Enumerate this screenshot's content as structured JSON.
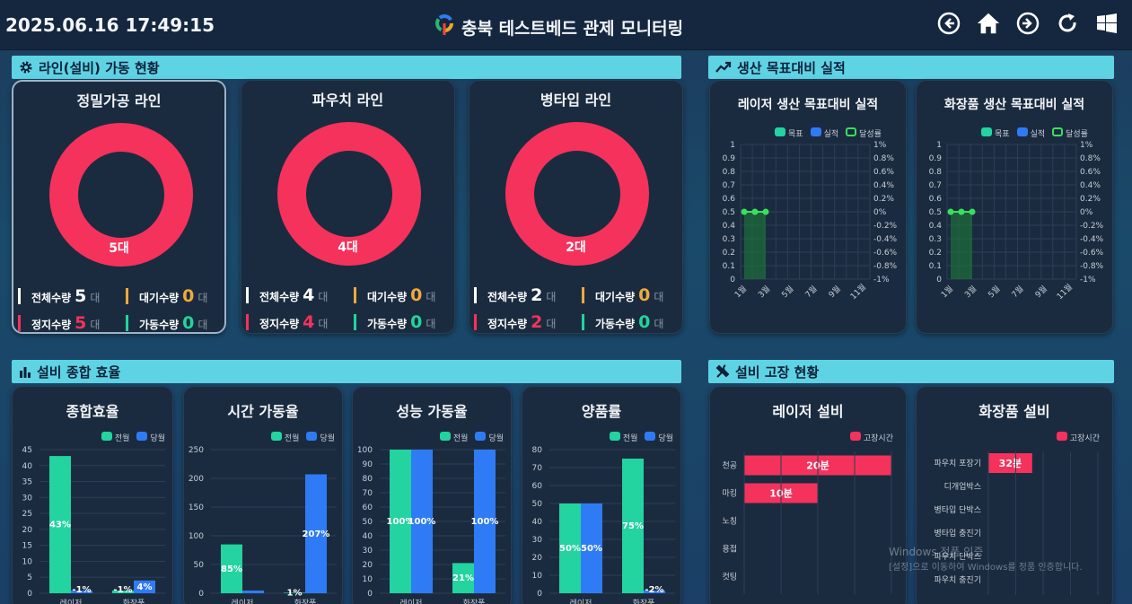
{
  "header": {
    "datetime": "2025.06.16 17:49:15",
    "title": "충북 테스트베드 관제 모니터링",
    "icons": [
      "back-circle-icon",
      "home-icon",
      "forward-circle-icon",
      "refresh-icon",
      "windows-icon"
    ]
  },
  "sections": {
    "line_status": "라인(설비) 가동 현황",
    "production": "생산 목표대비 실적",
    "efficiency": "설비 종합 효율",
    "failure": "설비 고장 현황"
  },
  "lines": [
    {
      "name": "정밀가공 라인",
      "center": "5대",
      "total_label": "전체수량",
      "total": "5",
      "wait_label": "대기수량",
      "wait": "0",
      "stop_label": "정지수량",
      "stop": "5",
      "run_label": "가동수량",
      "run": "0",
      "unit": "대"
    },
    {
      "name": "파우치 라인",
      "center": "4대",
      "total_label": "전체수량",
      "total": "4",
      "wait_label": "대기수량",
      "wait": "0",
      "stop_label": "정지수량",
      "stop": "4",
      "run_label": "가동수량",
      "run": "0",
      "unit": "대"
    },
    {
      "name": "병타입 라인",
      "center": "2대",
      "total_label": "전체수량",
      "total": "2",
      "wait_label": "대기수량",
      "wait": "0",
      "stop_label": "정지수량",
      "stop": "2",
      "run_label": "가동수량",
      "run": "0",
      "unit": "대"
    }
  ],
  "colors": {
    "stop": "#f5325c",
    "run": "#22d49c",
    "wait": "#f0a93a",
    "current": "#23d3a0",
    "prev": "#2f7bf5",
    "failure": "#f5325c"
  },
  "prod_charts": [
    {
      "title": "레이저 생산  목표대비 실적",
      "legend": [
        "목표",
        "실적",
        "달성률"
      ],
      "y_left": [
        "1",
        "0.9",
        "0.8",
        "0.7",
        "0.6",
        "0.5",
        "0.4",
        "0.3",
        "0.2",
        "0.1",
        "0"
      ],
      "y_right": [
        "1%",
        "0.8%",
        "0.6%",
        "0.4%",
        "0.2%",
        "0%",
        "-0.2%",
        "-0.4%",
        "-0.6%",
        "-0.8%",
        "-1%"
      ],
      "x": [
        "1월",
        "3월",
        "5월",
        "7월",
        "9월",
        "11월"
      ]
    },
    {
      "title": "화장품  생산 목표대비 실적",
      "legend": [
        "목표",
        "실적",
        "달성률"
      ],
      "y_left": [
        "1",
        "0.9",
        "0.8",
        "0.7",
        "0.6",
        "0.5",
        "0.4",
        "0.3",
        "0.2",
        "0.1",
        "0"
      ],
      "y_right": [
        "1%",
        "0.8%",
        "0.6%",
        "0.4%",
        "0.2%",
        "0%",
        "-0.2%",
        "-0.4%",
        "-0.6%",
        "-0.8%",
        "-1%"
      ],
      "x": [
        "1월",
        "3월",
        "5월",
        "7월",
        "9월",
        "11월"
      ]
    }
  ],
  "eff_legend": [
    "전월",
    "당월"
  ],
  "chart_data": [
    {
      "type": "bar",
      "title": "종합효율",
      "categories": [
        "레이저",
        "화장품"
      ],
      "series": [
        {
          "name": "전월",
          "values": [
            43,
            -1
          ]
        },
        {
          "name": "당월",
          "values": [
            -1,
            4
          ]
        }
      ],
      "labels": [
        [
          "43%",
          "-1%"
        ],
        [
          "-1%",
          "4%"
        ]
      ],
      "ylim": [
        0,
        45
      ],
      "yticks": [
        "45",
        "40",
        "35",
        "30",
        "25",
        "20",
        "15",
        "10",
        "5",
        "0"
      ]
    },
    {
      "type": "bar",
      "title": "시간 가동율",
      "categories": [
        "레이저",
        "화장품"
      ],
      "series": [
        {
          "name": "전월",
          "values": [
            85,
            1
          ]
        },
        {
          "name": "당월",
          "values": [
            0,
            207
          ]
        }
      ],
      "labels": [
        [
          "85%",
          "1%"
        ],
        [
          "",
          "207%"
        ]
      ],
      "ylim": [
        0,
        250
      ],
      "yticks": [
        "250",
        "200",
        "150",
        "100",
        "50",
        "0"
      ]
    },
    {
      "type": "bar",
      "title": "성능 가동율",
      "categories": [
        "레이저",
        "화장품"
      ],
      "series": [
        {
          "name": "전월",
          "values": [
            100,
            21
          ]
        },
        {
          "name": "당월",
          "values": [
            100,
            100
          ]
        }
      ],
      "labels": [
        [
          "100%",
          "21%"
        ],
        [
          "100%",
          "100%"
        ]
      ],
      "ylim": [
        0,
        100
      ],
      "yticks": [
        "100",
        "90",
        "80",
        "70",
        "60",
        "50",
        "40",
        "30",
        "20",
        "10",
        "0"
      ]
    },
    {
      "type": "bar",
      "title": "양품률",
      "categories": [
        "레이저",
        "화장품"
      ],
      "series": [
        {
          "name": "전월",
          "values": [
            50,
            75
          ]
        },
        {
          "name": "당월",
          "values": [
            50,
            -2
          ]
        }
      ],
      "labels": [
        [
          "50%",
          "75%"
        ],
        [
          "50%",
          "-2%"
        ]
      ],
      "ylim": [
        0,
        80
      ],
      "yticks": [
        "80",
        "70",
        "60",
        "50",
        "40",
        "30",
        "20",
        "10",
        "0"
      ]
    },
    {
      "type": "bar",
      "title": "레이저 설비",
      "orientation": "horizontal",
      "categories": [
        "천공",
        "마킹",
        "노칭",
        "용접",
        "컷팅"
      ],
      "series": [
        {
          "name": "고장시간",
          "values": [
            20,
            10,
            0,
            0,
            0
          ]
        }
      ],
      "labels": [
        "20분",
        "10분",
        "",
        "",
        ""
      ],
      "xlim": [
        0,
        20
      ]
    },
    {
      "type": "bar",
      "title": "화장품 설비",
      "orientation": "horizontal",
      "categories": [
        "파우치 포장기",
        "디개업박스",
        "병타입 단박스",
        "병타입 충진기",
        "파우치 단박스",
        "파우치 충진기"
      ],
      "series": [
        {
          "name": "고장시간",
          "values": [
            32,
            0,
            0,
            0,
            0,
            0
          ]
        }
      ],
      "labels": [
        "32분",
        "",
        "",
        "",
        "",
        ""
      ],
      "xlim": [
        0,
        80
      ]
    }
  ],
  "watermark": {
    "line1": "Windows 정품 인증",
    "line2": "[설정]으로 이동하여 Windows를 정품 인증합니다."
  }
}
